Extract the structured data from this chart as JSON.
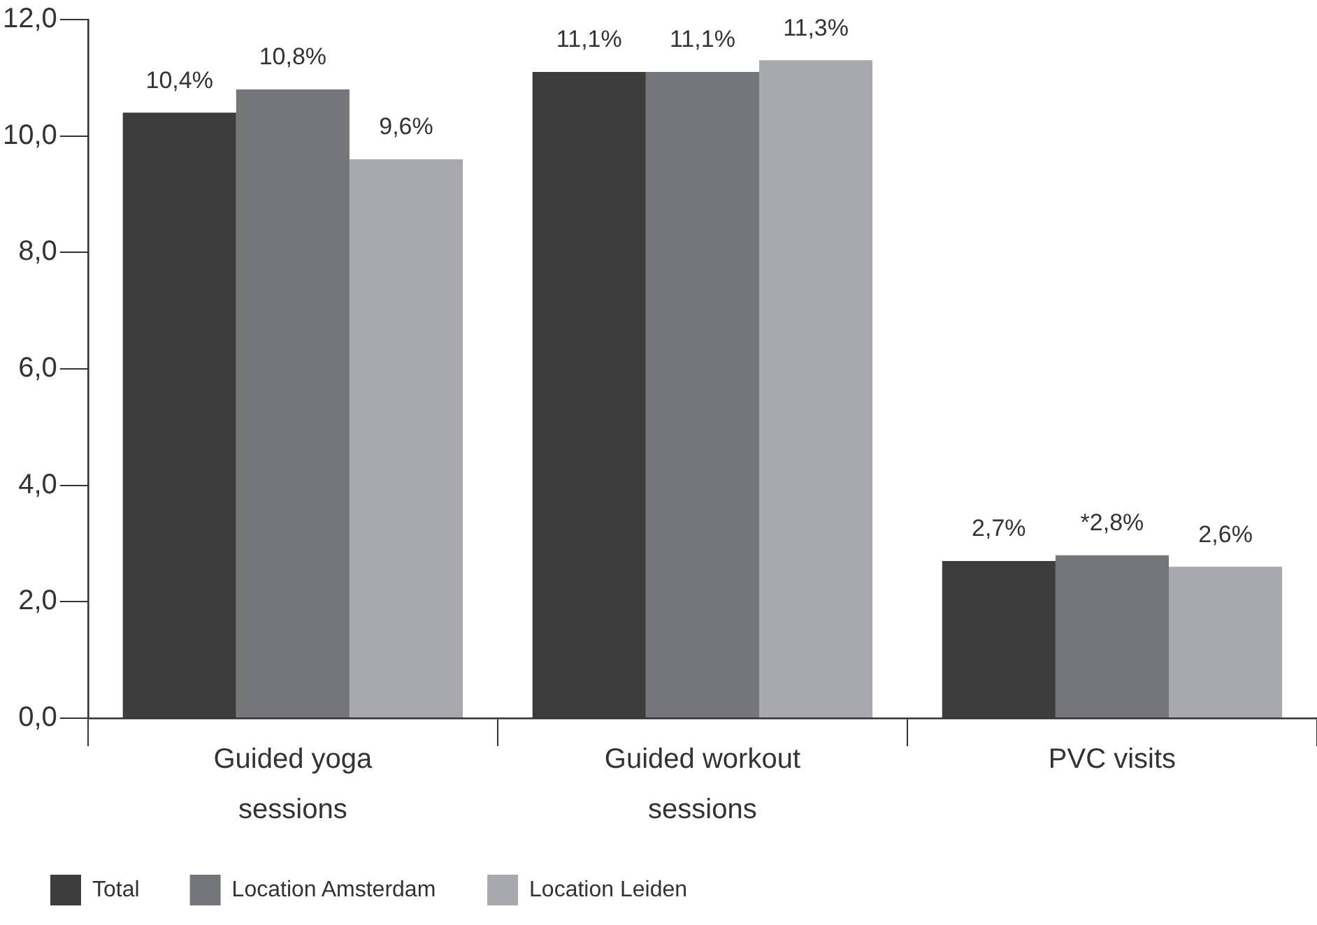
{
  "chart_data": {
    "type": "bar",
    "categories": [
      "Guided yoga sessions",
      "Guided workout sessions",
      "PVC visits"
    ],
    "series": [
      {
        "name": "Total",
        "color": "#3d3d3d",
        "values": [
          10.4,
          11.1,
          2.7
        ],
        "value_labels": [
          "10,4%",
          "11,1%",
          "2,7%"
        ]
      },
      {
        "name": "Location Amsterdam",
        "color": "#75767a",
        "values": [
          10.8,
          11.1,
          2.8
        ],
        "value_labels": [
          "10,8%",
          "11,1%",
          "*2,8%"
        ]
      },
      {
        "name": "Location Leiden",
        "color": "#a8a9ad",
        "values": [
          9.6,
          11.3,
          2.6
        ],
        "value_labels": [
          "9,6%",
          "11,3%",
          "2,6%"
        ]
      }
    ],
    "ylim": [
      0,
      12
    ],
    "yticks": [
      {
        "value": 0,
        "label": "0,0"
      },
      {
        "value": 2,
        "label": "2,0"
      },
      {
        "value": 4,
        "label": "4,0"
      },
      {
        "value": 6,
        "label": "6,0"
      },
      {
        "value": 8,
        "label": "8,0"
      },
      {
        "value": 10,
        "label": "10,0"
      },
      {
        "value": 12,
        "label": "12,0"
      }
    ],
    "grid": false,
    "legend": "bottom"
  }
}
